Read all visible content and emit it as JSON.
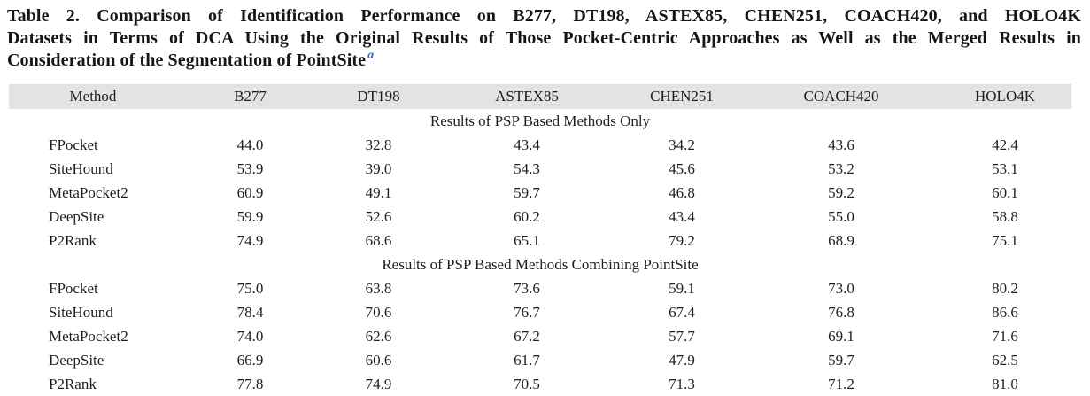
{
  "title": {
    "lines": [
      "Table 2. Comparison of Identification Performance on B277, DT198, ASTEX85, CHEN251, COACH420, and HOLO4K",
      "Datasets in Terms of DCA Using the Original Results of Those Pocket-Centric Approaches as Well as the Merged Results in",
      "Consideration of the Segmentation of PointSite"
    ],
    "footnote_marker": "a",
    "footnote_color": "#3b64a9",
    "text_color": "#161616"
  },
  "table": {
    "header_background": "#e3e3e3",
    "columns": [
      "Method",
      "B277",
      "DT198",
      "ASTEX85",
      "CHEN251",
      "COACH420",
      "HOLO4K"
    ],
    "sections": [
      {
        "header": "Results of PSP Based Methods Only",
        "rows": [
          {
            "method": "FPocket",
            "values": [
              "44.0",
              "32.8",
              "43.4",
              "34.2",
              "43.6",
              "42.4"
            ]
          },
          {
            "method": "SiteHound",
            "values": [
              "53.9",
              "39.0",
              "54.3",
              "45.6",
              "53.2",
              "53.1"
            ]
          },
          {
            "method": "MetaPocket2",
            "values": [
              "60.9",
              "49.1",
              "59.7",
              "46.8",
              "59.2",
              "60.1"
            ]
          },
          {
            "method": "DeepSite",
            "values": [
              "59.9",
              "52.6",
              "60.2",
              "43.4",
              "55.0",
              "58.8"
            ]
          },
          {
            "method": "P2Rank",
            "values": [
              "74.9",
              "68.6",
              "65.1",
              "79.2",
              "68.9",
              "75.1"
            ]
          }
        ]
      },
      {
        "header": "Results of PSP Based Methods Combining PointSite",
        "rows": [
          {
            "method": "FPocket",
            "values": [
              "75.0",
              "63.8",
              "73.6",
              "59.1",
              "73.0",
              "80.2"
            ]
          },
          {
            "method": "SiteHound",
            "values": [
              "78.4",
              "70.6",
              "76.7",
              "67.4",
              "76.8",
              "86.6"
            ]
          },
          {
            "method": "MetaPocket2",
            "values": [
              "74.0",
              "62.6",
              "67.2",
              "57.7",
              "69.1",
              "71.6"
            ]
          },
          {
            "method": "DeepSite",
            "values": [
              "66.9",
              "60.6",
              "61.7",
              "47.9",
              "59.7",
              "62.5"
            ]
          },
          {
            "method": "P2Rank",
            "values": [
              "77.8",
              "74.9",
              "70.5",
              "71.3",
              "71.2",
              "81.0"
            ]
          }
        ]
      }
    ]
  }
}
